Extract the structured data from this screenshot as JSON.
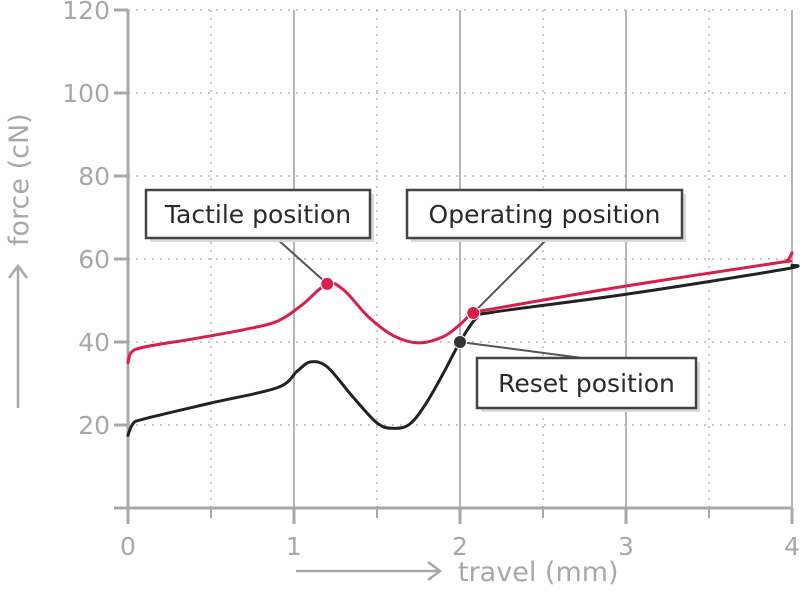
{
  "chart_data": {
    "type": "line",
    "xlabel": "travel (mm)",
    "ylabel": "force (cN)",
    "xlim": [
      0,
      4
    ],
    "ylim": [
      0,
      120
    ],
    "x_ticks": [
      "0",
      "1",
      "2",
      "3",
      "4"
    ],
    "y_ticks": [
      "20",
      "40",
      "60",
      "80",
      "100",
      "120"
    ],
    "grid": true,
    "series": [
      {
        "color": "#d81e4a",
        "points": [
          [
            0,
            35
          ],
          [
            0.02,
            37.5
          ],
          [
            0.1,
            38.8
          ],
          [
            0.4,
            40.8
          ],
          [
            0.7,
            43
          ],
          [
            0.9,
            45
          ],
          [
            1.05,
            49
          ],
          [
            1.2,
            54
          ],
          [
            1.3,
            52.5
          ],
          [
            1.45,
            46
          ],
          [
            1.6,
            41.5
          ],
          [
            1.75,
            39.8
          ],
          [
            1.9,
            41.3
          ],
          [
            2.0,
            44.2
          ],
          [
            2.08,
            47
          ],
          [
            2.2,
            48
          ],
          [
            3.0,
            53.5
          ],
          [
            3.9,
            59
          ],
          [
            3.97,
            59.6
          ],
          [
            4.0,
            61.5
          ]
        ]
      },
      {
        "color": "#222222",
        "points": [
          [
            0,
            17.5
          ],
          [
            0.03,
            20.3
          ],
          [
            0.1,
            21.5
          ],
          [
            0.5,
            25.3
          ],
          [
            0.9,
            29
          ],
          [
            1.02,
            33
          ],
          [
            1.1,
            35.2
          ],
          [
            1.2,
            34
          ],
          [
            1.35,
            27
          ],
          [
            1.5,
            20.5
          ],
          [
            1.6,
            19.2
          ],
          [
            1.7,
            20.3
          ],
          [
            1.8,
            25.5
          ],
          [
            1.9,
            32.5
          ],
          [
            2.0,
            40
          ],
          [
            2.1,
            45.8
          ],
          [
            2.2,
            47.2
          ],
          [
            3.0,
            51.5
          ],
          [
            3.95,
            57.5
          ],
          [
            4.0,
            58.5
          ]
        ]
      }
    ],
    "markers": [
      {
        "x": 1.2,
        "y": 54,
        "color": "#d81e4a",
        "label": "Tactile position"
      },
      {
        "x": 2.08,
        "y": 47,
        "color": "#d81e4a",
        "label": "Operating position"
      },
      {
        "x": 2.0,
        "y": 40,
        "color": "#333333",
        "label": "Reset position"
      }
    ]
  }
}
